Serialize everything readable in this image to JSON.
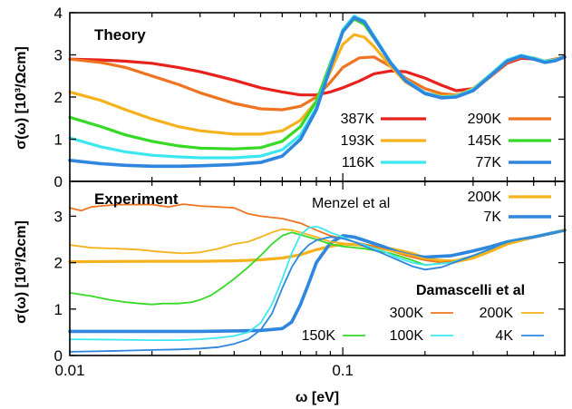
{
  "colors": {
    "red": "#e8211c",
    "orange": "#f0741f",
    "yellow": "#f5b21c",
    "green": "#36d926",
    "cyan": "#3ce8f0",
    "blue": "#2e86de"
  },
  "chart_data": [
    {
      "type": "line",
      "panel_title": "Theory",
      "ylabel": "σ(ω) [10³/Ωcm]",
      "xscale": "log",
      "xlim": [
        0.01,
        0.65
      ],
      "ylim": [
        0,
        4
      ],
      "yticks": [
        "0",
        "1",
        "2",
        "3",
        "4"
      ],
      "legend_position": "bottom-right",
      "series": [
        {
          "name": "387K",
          "color": "red",
          "width": 3.2,
          "x": [
            0.01,
            0.013,
            0.016,
            0.02,
            0.025,
            0.03,
            0.04,
            0.05,
            0.06,
            0.07,
            0.08,
            0.09,
            0.1,
            0.115,
            0.13,
            0.15,
            0.17,
            0.2,
            0.23,
            0.26,
            0.3,
            0.35,
            0.4,
            0.45,
            0.5,
            0.55,
            0.6,
            0.65
          ],
          "y": [
            2.9,
            2.88,
            2.85,
            2.8,
            2.7,
            2.6,
            2.4,
            2.22,
            2.12,
            2.05,
            2.05,
            2.12,
            2.22,
            2.38,
            2.55,
            2.62,
            2.6,
            2.45,
            2.28,
            2.15,
            2.2,
            2.5,
            2.8,
            2.92,
            2.9,
            2.85,
            2.9,
            2.95
          ]
        },
        {
          "name": "290K",
          "color": "orange",
          "width": 3.2,
          "x": [
            0.01,
            0.013,
            0.016,
            0.02,
            0.025,
            0.03,
            0.04,
            0.05,
            0.06,
            0.07,
            0.08,
            0.09,
            0.1,
            0.115,
            0.13,
            0.15,
            0.17,
            0.2,
            0.23,
            0.26,
            0.3,
            0.35,
            0.4,
            0.45,
            0.5,
            0.55,
            0.6,
            0.65
          ],
          "y": [
            2.9,
            2.82,
            2.7,
            2.5,
            2.3,
            2.1,
            1.85,
            1.72,
            1.7,
            1.78,
            2.0,
            2.35,
            2.7,
            2.93,
            2.95,
            2.72,
            2.45,
            2.2,
            2.08,
            2.05,
            2.15,
            2.5,
            2.82,
            2.95,
            2.93,
            2.85,
            2.9,
            2.95
          ]
        },
        {
          "name": "193K",
          "color": "yellow",
          "width": 3.2,
          "x": [
            0.01,
            0.013,
            0.016,
            0.02,
            0.025,
            0.03,
            0.04,
            0.05,
            0.06,
            0.07,
            0.08,
            0.09,
            0.1,
            0.11,
            0.12,
            0.13,
            0.15,
            0.17,
            0.2,
            0.23,
            0.26,
            0.3,
            0.35,
            0.4,
            0.45,
            0.5,
            0.55,
            0.6,
            0.65
          ],
          "y": [
            2.12,
            1.92,
            1.7,
            1.48,
            1.3,
            1.2,
            1.12,
            1.12,
            1.2,
            1.45,
            1.9,
            2.6,
            3.25,
            3.48,
            3.42,
            3.2,
            2.72,
            2.35,
            2.1,
            2.02,
            2.04,
            2.2,
            2.55,
            2.85,
            2.98,
            2.92,
            2.85,
            2.88,
            2.95
          ]
        },
        {
          "name": "145K",
          "color": "green",
          "width": 3.2,
          "x": [
            0.01,
            0.013,
            0.016,
            0.02,
            0.025,
            0.03,
            0.04,
            0.05,
            0.06,
            0.07,
            0.08,
            0.09,
            0.1,
            0.11,
            0.12,
            0.13,
            0.15,
            0.17,
            0.2,
            0.23,
            0.26,
            0.3,
            0.35,
            0.4,
            0.45,
            0.5,
            0.55,
            0.6,
            0.65
          ],
          "y": [
            1.52,
            1.3,
            1.1,
            0.95,
            0.84,
            0.79,
            0.77,
            0.8,
            0.95,
            1.3,
            1.9,
            2.8,
            3.55,
            3.85,
            3.72,
            3.4,
            2.8,
            2.38,
            2.1,
            2.0,
            2.02,
            2.18,
            2.55,
            2.88,
            2.99,
            2.92,
            2.85,
            2.88,
            2.95
          ]
        },
        {
          "name": "116K",
          "color": "cyan",
          "width": 3.2,
          "x": [
            0.01,
            0.013,
            0.016,
            0.02,
            0.025,
            0.03,
            0.04,
            0.05,
            0.06,
            0.07,
            0.08,
            0.09,
            0.1,
            0.11,
            0.12,
            0.13,
            0.15,
            0.17,
            0.2,
            0.23,
            0.26,
            0.3,
            0.35,
            0.4,
            0.45,
            0.5,
            0.55,
            0.6,
            0.65
          ],
          "y": [
            1.03,
            0.82,
            0.7,
            0.62,
            0.58,
            0.56,
            0.56,
            0.6,
            0.75,
            1.1,
            1.75,
            2.75,
            3.6,
            3.92,
            3.8,
            3.45,
            2.82,
            2.4,
            2.1,
            2.0,
            2.02,
            2.18,
            2.55,
            2.88,
            2.99,
            2.92,
            2.85,
            2.88,
            2.95
          ]
        },
        {
          "name": "77K",
          "color": "blue",
          "width": 3.6,
          "x": [
            0.01,
            0.013,
            0.016,
            0.02,
            0.025,
            0.03,
            0.04,
            0.05,
            0.06,
            0.07,
            0.08,
            0.09,
            0.1,
            0.11,
            0.12,
            0.13,
            0.15,
            0.17,
            0.2,
            0.23,
            0.26,
            0.3,
            0.35,
            0.4,
            0.45,
            0.5,
            0.55,
            0.6,
            0.65
          ],
          "y": [
            0.5,
            0.42,
            0.38,
            0.36,
            0.36,
            0.37,
            0.4,
            0.45,
            0.6,
            1.0,
            1.7,
            2.7,
            3.55,
            3.88,
            3.78,
            3.42,
            2.8,
            2.38,
            2.08,
            1.98,
            2.0,
            2.15,
            2.52,
            2.85,
            2.97,
            2.9,
            2.82,
            2.86,
            2.95
          ]
        }
      ]
    },
    {
      "type": "line",
      "panel_title": "Experiment",
      "xlabel": "ω [eV]",
      "ylabel": "σ(ω) [10³/Ωcm]",
      "xscale": "log",
      "xlim": [
        0.01,
        0.65
      ],
      "ylim": [
        0,
        3.75
      ],
      "xticks": [
        "0.01",
        "0.1"
      ],
      "yticks": [
        "0",
        "1",
        "2",
        "3"
      ],
      "legend_group_labels": [
        "Menzel et al",
        "Damascelli et al"
      ],
      "series": [
        {
          "name": "200K",
          "group": "Menzel et al",
          "color": "yellow",
          "width": 3.2,
          "x": [
            0.01,
            0.02,
            0.03,
            0.04,
            0.05,
            0.06,
            0.07,
            0.08,
            0.09,
            0.1,
            0.12,
            0.15,
            0.18,
            0.2,
            0.25,
            0.3,
            0.35,
            0.4,
            0.5,
            0.6,
            0.65
          ],
          "y": [
            2.02,
            2.03,
            2.03,
            2.04,
            2.06,
            2.1,
            2.17,
            2.28,
            2.35,
            2.4,
            2.38,
            2.3,
            2.2,
            2.1,
            2.0,
            2.1,
            2.25,
            2.4,
            2.55,
            2.65,
            2.7
          ]
        },
        {
          "name": "7K",
          "group": "Menzel et al",
          "color": "blue",
          "width": 3.6,
          "x": [
            0.01,
            0.02,
            0.03,
            0.04,
            0.05,
            0.06,
            0.065,
            0.07,
            0.075,
            0.08,
            0.09,
            0.1,
            0.11,
            0.12,
            0.14,
            0.16,
            0.18,
            0.2,
            0.25,
            0.3,
            0.35,
            0.4,
            0.5,
            0.6,
            0.65
          ],
          "y": [
            0.52,
            0.52,
            0.52,
            0.53,
            0.54,
            0.58,
            0.72,
            1.1,
            1.55,
            2.0,
            2.42,
            2.58,
            2.55,
            2.48,
            2.35,
            2.22,
            2.15,
            2.12,
            2.15,
            2.25,
            2.35,
            2.45,
            2.55,
            2.65,
            2.7
          ]
        },
        {
          "name": "300K",
          "group": "Damascelli et al",
          "color": "orange",
          "width": 1.8,
          "x": [
            0.01,
            0.011,
            0.012,
            0.013,
            0.015,
            0.017,
            0.02,
            0.023,
            0.026,
            0.03,
            0.035,
            0.04,
            0.045,
            0.05,
            0.06,
            0.07,
            0.08,
            0.09,
            0.1,
            0.11,
            0.13,
            0.15,
            0.17,
            0.2,
            0.23,
            0.26,
            0.3,
            0.35,
            0.4,
            0.5,
            0.6,
            0.65
          ],
          "y": [
            3.18,
            3.12,
            3.2,
            3.22,
            3.25,
            3.25,
            3.25,
            3.2,
            3.26,
            3.22,
            3.2,
            3.18,
            3.05,
            3.0,
            2.95,
            2.85,
            2.7,
            2.58,
            2.52,
            2.45,
            2.35,
            2.25,
            2.15,
            2.05,
            2.0,
            2.05,
            2.15,
            2.3,
            2.45,
            2.55,
            2.65,
            2.7
          ]
        },
        {
          "name": "200K",
          "group": "Damascelli et al",
          "color": "yellow",
          "width": 1.8,
          "x": [
            0.01,
            0.012,
            0.015,
            0.018,
            0.02,
            0.023,
            0.026,
            0.03,
            0.035,
            0.04,
            0.045,
            0.05,
            0.055,
            0.06,
            0.065,
            0.07,
            0.08,
            0.09,
            0.1,
            0.12,
            0.15,
            0.18,
            0.2,
            0.25,
            0.3,
            0.35,
            0.4,
            0.5,
            0.6,
            0.65
          ],
          "y": [
            2.38,
            2.32,
            2.3,
            2.28,
            2.25,
            2.22,
            2.2,
            2.22,
            2.3,
            2.4,
            2.45,
            2.55,
            2.65,
            2.72,
            2.7,
            2.65,
            2.55,
            2.45,
            2.42,
            2.35,
            2.25,
            2.15,
            2.08,
            2.05,
            2.1,
            2.25,
            2.4,
            2.55,
            2.65,
            2.72
          ]
        },
        {
          "name": "150K",
          "group": "Damascelli et al",
          "color": "green",
          "width": 1.8,
          "x": [
            0.01,
            0.012,
            0.014,
            0.016,
            0.018,
            0.02,
            0.022,
            0.025,
            0.028,
            0.03,
            0.033,
            0.036,
            0.04,
            0.045,
            0.05,
            0.055,
            0.06,
            0.065,
            0.07,
            0.08,
            0.09,
            0.1,
            0.12,
            0.15,
            0.18,
            0.2,
            0.25,
            0.3,
            0.35,
            0.4,
            0.5,
            0.6,
            0.65
          ],
          "y": [
            1.35,
            1.28,
            1.2,
            1.15,
            1.12,
            1.1,
            1.12,
            1.12,
            1.15,
            1.2,
            1.3,
            1.45,
            1.65,
            1.9,
            2.15,
            2.4,
            2.58,
            2.65,
            2.6,
            2.5,
            2.4,
            2.35,
            2.3,
            2.2,
            2.05,
            1.95,
            2.0,
            2.15,
            2.3,
            2.45,
            2.55,
            2.65,
            2.7
          ]
        },
        {
          "name": "100K",
          "group": "Damascelli et al",
          "color": "cyan",
          "width": 1.8,
          "x": [
            0.01,
            0.015,
            0.02,
            0.025,
            0.03,
            0.035,
            0.04,
            0.045,
            0.05,
            0.055,
            0.06,
            0.065,
            0.07,
            0.075,
            0.08,
            0.085,
            0.09,
            0.1,
            0.11,
            0.12,
            0.14,
            0.16,
            0.18,
            0.2,
            0.25,
            0.3,
            0.35,
            0.4,
            0.5,
            0.6,
            0.65
          ],
          "y": [
            0.35,
            0.34,
            0.33,
            0.33,
            0.35,
            0.38,
            0.42,
            0.5,
            0.7,
            1.1,
            1.65,
            2.2,
            2.6,
            2.75,
            2.78,
            2.72,
            2.65,
            2.55,
            2.45,
            2.38,
            2.25,
            2.1,
            2.0,
            1.95,
            2.0,
            2.15,
            2.3,
            2.45,
            2.55,
            2.65,
            2.7
          ]
        },
        {
          "name": "4K",
          "group": "Damascelli et al",
          "color": "blue",
          "width": 1.8,
          "x": [
            0.01,
            0.015,
            0.02,
            0.025,
            0.03,
            0.035,
            0.04,
            0.045,
            0.05,
            0.055,
            0.06,
            0.065,
            0.07,
            0.075,
            0.08,
            0.085,
            0.09,
            0.1,
            0.11,
            0.12,
            0.14,
            0.16,
            0.18,
            0.2,
            0.23,
            0.26,
            0.3,
            0.35,
            0.4,
            0.5,
            0.6,
            0.65
          ],
          "y": [
            0.08,
            0.1,
            0.12,
            0.13,
            0.15,
            0.18,
            0.25,
            0.35,
            0.55,
            0.9,
            1.45,
            1.9,
            2.2,
            2.38,
            2.48,
            2.52,
            2.55,
            2.52,
            2.45,
            2.35,
            2.2,
            2.05,
            1.92,
            1.85,
            1.9,
            2.02,
            2.15,
            2.3,
            2.45,
            2.55,
            2.65,
            2.7
          ]
        }
      ]
    }
  ]
}
